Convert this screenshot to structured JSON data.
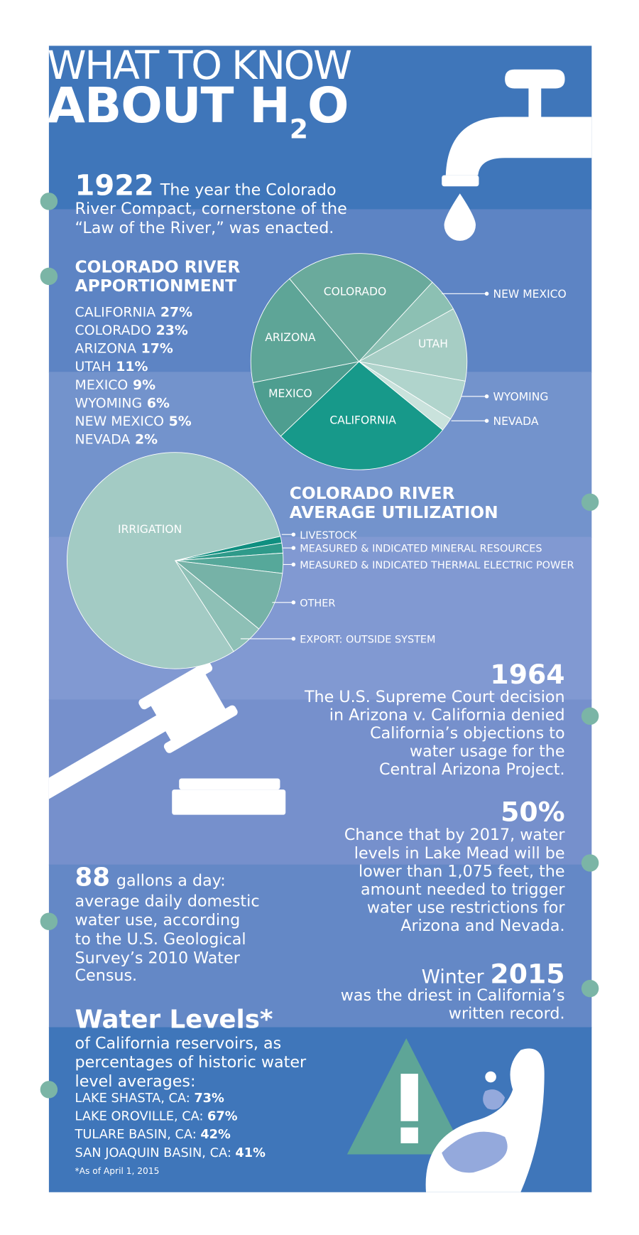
{
  "header": {
    "line1": "WHAT TO KNOW",
    "line2": "ABOUT H",
    "sub": "2",
    "line2_end": "O"
  },
  "fact_1922": {
    "big": "1922",
    "lines": [
      "The year the Colorado",
      "River Compact, cornerstone of the",
      "“Law of the River,” was enacted."
    ]
  },
  "chart_data": [
    {
      "type": "pie",
      "title": [
        "COLORADO RIVER",
        "APPORTIONMENT"
      ],
      "categories": [
        "CALIFORNIA",
        "COLORADO",
        "ARIZONA",
        "UTAH",
        "MEXICO",
        "WYOMING",
        "NEW MEXICO",
        "NEVADA"
      ],
      "values": [
        27,
        23,
        17,
        11,
        9,
        6,
        5,
        2
      ],
      "value_labels": [
        "27%",
        "23%",
        "17%",
        "11%",
        "9%",
        "6%",
        "5%",
        "2%"
      ],
      "colors": [
        "#17998a",
        "#6aaa9c",
        "#5ea597",
        "#a6cdc4",
        "#4e9e90",
        "#b0d4cc",
        "#8cc0b3",
        "#c9e2dc"
      ]
    },
    {
      "type": "pie",
      "title": [
        "COLORADO RIVER",
        "AVERAGE UTILIZATION"
      ],
      "categories": [
        "IRRIGATION",
        "LIVESTOCK",
        "MEASURED & INDICATED MINERAL RESOURCES",
        "MEASURED & INDICATED THERMAL ELECTRIC POWER",
        "OTHER",
        "EXPORT: OUTSIDE SYSTEM"
      ],
      "values": [
        80.5,
        1,
        1.5,
        3,
        9,
        5
      ],
      "colors": [
        "#a3cbc4",
        "#0f8f80",
        "#2f9a8a",
        "#56a89a",
        "#76b2a7",
        "#8ec0b6"
      ]
    }
  ],
  "fact_1964": {
    "big": "1964",
    "lines": [
      "The U.S. Supreme Court decision",
      "in Arizona v. California denied",
      "California’s objections to",
      "water usage for the",
      "Central Arizona Project."
    ]
  },
  "fact_50": {
    "big": "50%",
    "lines": [
      "Chance that by 2017, water",
      "levels in Lake Mead will be",
      "lower than 1,075 feet, the",
      "amount needed to trigger",
      "water use restrictions for",
      "Arizona and Nevada."
    ]
  },
  "fact_88": {
    "big": "88",
    "lines": [
      "gallons a day:",
      "average daily domestic",
      "water use, according",
      "to the U.S. Geological",
      "Survey’s 2010 Water",
      "Census."
    ]
  },
  "fact_2015": {
    "pre": "Winter",
    "big": "2015",
    "lines": [
      "was the driest in California’s",
      "written record."
    ]
  },
  "water_levels": {
    "title": "Water Levels*",
    "lines": [
      "of California reservoirs, as",
      "percentages of historic water",
      "level averages:"
    ],
    "items": [
      {
        "name": "LAKE SHASTA, CA:",
        "value": "73%"
      },
      {
        "name": "LAKE OROVILLE, CA:",
        "value": "67%"
      },
      {
        "name": "TULARE BASIN, CA:",
        "value": "42%"
      },
      {
        "name": "SAN JOAQUIN BASIN, CA:",
        "value": "41%"
      }
    ],
    "footnote": "*As of April 1, 2015"
  }
}
